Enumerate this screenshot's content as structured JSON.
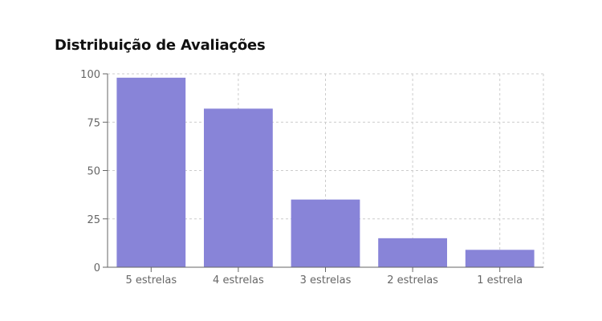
{
  "title": "Distribuição de Avaliações",
  "colors": {
    "bar": "#8884d8",
    "grid": "#cccccc",
    "axis": "#666666"
  },
  "chart_data": {
    "type": "bar",
    "title": "Distribuição de Avaliações",
    "xlabel": "",
    "ylabel": "",
    "categories": [
      "5 estrelas",
      "4 estrelas",
      "3 estrelas",
      "2 estrelas",
      "1 estrela"
    ],
    "values": [
      98,
      82,
      35,
      15,
      9
    ],
    "ylim": [
      0,
      100
    ],
    "yticks": [
      0,
      25,
      50,
      75,
      100
    ],
    "grid": true,
    "legend": null
  }
}
